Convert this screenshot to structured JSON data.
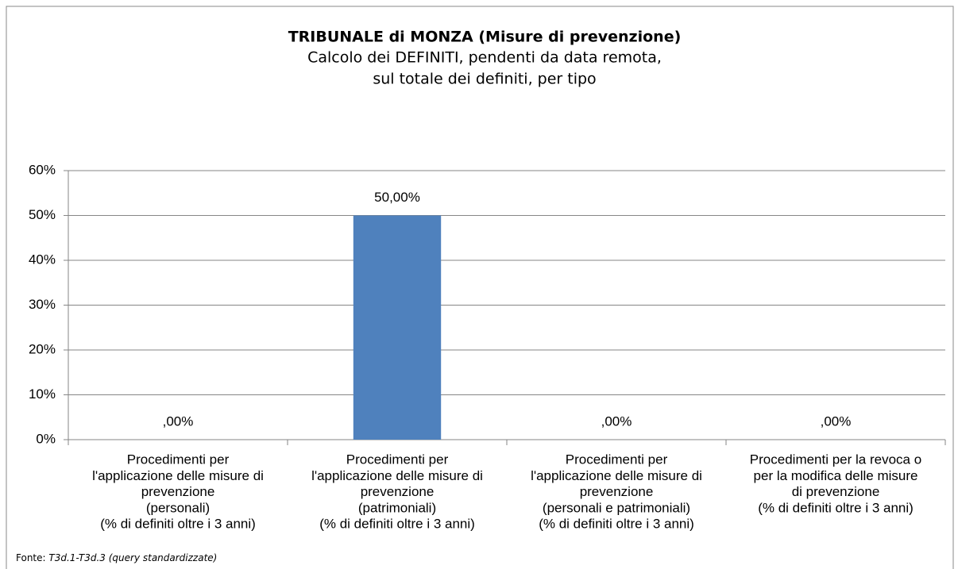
{
  "chart_data": {
    "type": "bar",
    "title": "TRIBUNALE di MONZA (Misure di prevenzione)",
    "subtitle": [
      "Calcolo dei DEFINITI, pendenti da data remota,",
      "sul totale dei definiti, per tipo"
    ],
    "categories": [
      [
        "Procedimenti per",
        "l'applicazione delle misure di",
        "prevenzione",
        "(personali)",
        "(% di definiti oltre i 3 anni)"
      ],
      [
        "Procedimenti per",
        "l'applicazione delle misure di",
        "prevenzione",
        "(patrimoniali)",
        "(% di definiti oltre i 3 anni)"
      ],
      [
        "Procedimenti per",
        "l'applicazione delle misure di",
        "prevenzione",
        "(personali e patrimoniali)",
        "(% di definiti oltre i 3 anni)"
      ],
      [
        "Procedimenti per la revoca o",
        "per la modifica delle misure",
        "di prevenzione",
        "(% di definiti oltre i 3 anni)"
      ]
    ],
    "values": [
      0,
      50,
      0,
      0
    ],
    "value_labels": [
      ",00%",
      "50,00%",
      ",00%",
      ",00%"
    ],
    "color": "#4f81bd",
    "ylim": [
      0,
      60
    ],
    "yticks": [
      {
        "value": 0,
        "label": "0%"
      },
      {
        "value": 10,
        "label": "10%"
      },
      {
        "value": 20,
        "label": "20%"
      },
      {
        "value": 30,
        "label": "30%"
      },
      {
        "value": 40,
        "label": "40%"
      },
      {
        "value": 50,
        "label": "50%"
      },
      {
        "value": 60,
        "label": "60%"
      }
    ],
    "grid": true,
    "source_label": "Fonte:",
    "source": "T3d.1-T3d.3 (query standardizzate)"
  }
}
